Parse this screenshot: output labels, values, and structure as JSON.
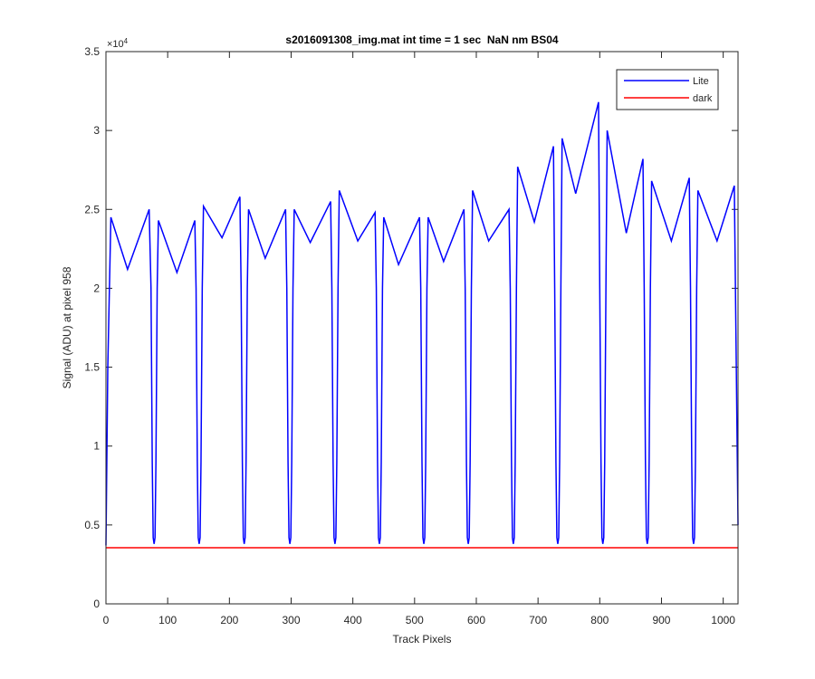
{
  "chart_data": {
    "type": "line",
    "title": "s2016091308_img.mat int time = 1 sec  NaN nm BS04",
    "xlabel": "Track Pixels",
    "ylabel": "Signal (ADU) at pixel 958",
    "y_multiplier_base": "×10",
    "y_multiplier_exp": "4",
    "xlim": [
      0,
      1024
    ],
    "ylim": [
      0,
      3.5
    ],
    "xticks": [
      0,
      100,
      200,
      300,
      400,
      500,
      600,
      700,
      800,
      900,
      1000
    ],
    "yticks": [
      0,
      0.5,
      1,
      1.5,
      2,
      2.5,
      3,
      3.5
    ],
    "grid": false,
    "legend": "top-right",
    "series": [
      {
        "name": "Lite",
        "color": "#0000ff",
        "x": [
          0,
          3,
          8,
          35,
          70,
          73,
          75,
          76.5,
          78,
          79.5,
          81,
          83,
          85,
          115,
          144,
          146,
          148,
          149.5,
          151,
          152.5,
          154,
          156,
          158,
          188,
          217,
          219,
          221,
          222.5,
          224,
          225.5,
          227,
          229,
          231,
          258,
          291,
          293,
          295,
          296.5,
          298,
          299.5,
          301,
          303,
          305,
          331,
          364,
          366,
          368,
          369.5,
          371,
          372.5,
          374,
          376,
          378,
          408,
          436,
          438,
          440,
          441.5,
          443,
          444.5,
          446,
          448,
          450,
          474,
          508,
          510,
          512,
          513.5,
          515,
          516.5,
          518,
          520,
          522,
          547,
          580,
          582,
          584,
          585.5,
          587,
          588.5,
          590,
          592,
          594,
          620,
          653,
          655,
          657,
          658.5,
          660,
          661.5,
          663,
          665,
          667,
          694,
          725,
          727,
          729,
          730.5,
          732,
          733.5,
          735,
          737,
          739,
          761,
          798,
          800,
          802,
          803.5,
          805,
          806.5,
          808,
          810,
          812,
          843,
          870,
          872,
          874,
          875.5,
          877,
          878.5,
          880,
          882,
          884,
          916,
          945,
          947,
          949,
          950.5,
          952,
          953.5,
          955,
          957,
          959,
          990,
          1018,
          1024
        ],
        "values": [
          0.37,
          1.5,
          2.45,
          2.12,
          2.5,
          2.0,
          0.9,
          0.42,
          0.38,
          0.42,
          0.9,
          2.0,
          2.43,
          2.1,
          2.43,
          2.0,
          0.9,
          0.42,
          0.38,
          0.42,
          0.9,
          2.0,
          2.52,
          2.32,
          2.58,
          2.0,
          0.9,
          0.42,
          0.38,
          0.42,
          0.9,
          2.0,
          2.5,
          2.19,
          2.5,
          2.0,
          0.9,
          0.42,
          0.38,
          0.42,
          0.9,
          2.0,
          2.5,
          2.29,
          2.55,
          2.0,
          0.9,
          0.42,
          0.38,
          0.42,
          0.9,
          2.0,
          2.62,
          2.3,
          2.48,
          2.0,
          0.9,
          0.42,
          0.38,
          0.42,
          0.9,
          2.0,
          2.45,
          2.15,
          2.45,
          2.0,
          0.9,
          0.42,
          0.38,
          0.42,
          0.9,
          2.0,
          2.45,
          2.17,
          2.5,
          2.0,
          0.9,
          0.42,
          0.38,
          0.42,
          0.9,
          2.0,
          2.62,
          2.3,
          2.5,
          2.0,
          0.9,
          0.42,
          0.38,
          0.42,
          0.9,
          2.0,
          2.77,
          2.42,
          2.9,
          2.0,
          0.9,
          0.42,
          0.38,
          0.42,
          0.9,
          2.0,
          2.95,
          2.6,
          3.18,
          2.0,
          0.9,
          0.42,
          0.38,
          0.42,
          0.9,
          2.0,
          3.0,
          2.35,
          2.82,
          2.0,
          0.9,
          0.42,
          0.38,
          0.42,
          0.9,
          2.0,
          2.68,
          2.3,
          2.7,
          2.0,
          0.9,
          0.42,
          0.38,
          0.42,
          0.9,
          2.0,
          2.62,
          2.3,
          2.65,
          0.5
        ]
      },
      {
        "name": "dark",
        "color": "#ff0000",
        "x": [
          0,
          1024
        ],
        "values": [
          0.356,
          0.356
        ]
      }
    ]
  }
}
